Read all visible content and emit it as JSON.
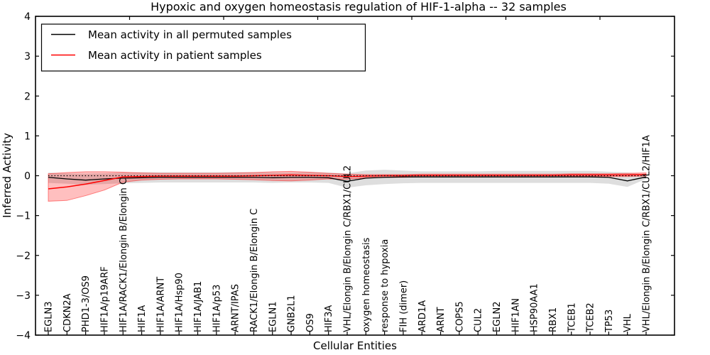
{
  "title": "Hypoxic and oxygen homeostasis regulation of HIF-1-alpha -- 32 samples",
  "colors": {
    "permuted_line": "#000000",
    "patient_line": "#ff0000",
    "permuted_band": "rgba(0,0,0,0.13)",
    "patient_band": "rgba(255,0,0,0.25)",
    "patient_band_edge": "rgba(255,0,0,0.45)",
    "axis": "#000000",
    "background": "#ffffff"
  },
  "chart_data": {
    "type": "line",
    "title": "Hypoxic and oxygen homeostasis regulation of HIF-1-alpha -- 32 samples",
    "xlabel": "Cellular Entities",
    "ylabel": "Inferred Activity",
    "ylim": [
      -4,
      4
    ],
    "ytick_labels": [
      "−4",
      "−3",
      "−2",
      "−1",
      "0",
      "1",
      "2",
      "3",
      "4"
    ],
    "ytick_values": [
      -4,
      -3,
      -2,
      -1,
      0,
      1,
      2,
      3,
      4
    ],
    "grid": false,
    "legend_position": "upper left",
    "reference_line": {
      "y": 0,
      "style": "dotted",
      "color": "#000000"
    },
    "categories": [
      "EGLN3",
      "CDKN2A",
      "PHD1-3/OS9",
      "HIF1A/p19ARF",
      "HIF1A/RACK1/Elongin B/Elongin C",
      "HIF1A",
      "HIF1A/ARNT",
      "HIF1A/Hsp90",
      "HIF1A/JAB1",
      "HIF1A/p53",
      "ARNT/IPAS",
      "RACK1/Elongin B/Elongin C",
      "EGLN1",
      "GNB2L1",
      "OS9",
      "HIF3A",
      "VHL/Elongin B/Elongin C/RBX1/CUL2",
      "oxygen homeostasis",
      "response to hypoxia",
      "FIH (dimer)",
      "ARD1A",
      "ARNT",
      "COPS5",
      "CUL2",
      "EGLN2",
      "HIF1AN",
      "HSP90AA1",
      "RBX1",
      "TCEB1",
      "TCEB2",
      "TP53",
      "VHL",
      "VHL/Elongin B/Elongin C/RBX1/CUL2/HIF1A"
    ],
    "series": [
      {
        "name": "Mean activity in all permuted samples",
        "color": "#000000",
        "values": [
          -0.04,
          -0.08,
          -0.11,
          -0.08,
          -0.06,
          -0.05,
          -0.04,
          -0.04,
          -0.04,
          -0.04,
          -0.04,
          -0.04,
          -0.05,
          -0.04,
          -0.04,
          -0.05,
          -0.14,
          -0.06,
          -0.04,
          -0.03,
          -0.03,
          -0.03,
          -0.03,
          -0.03,
          -0.03,
          -0.03,
          -0.03,
          -0.03,
          -0.03,
          -0.03,
          -0.04,
          -0.13,
          -0.03
        ],
        "band_upper": [
          0.08,
          0.06,
          0.05,
          0.06,
          0.08,
          0.09,
          0.09,
          0.09,
          0.09,
          0.09,
          0.09,
          0.09,
          0.08,
          0.08,
          0.09,
          0.08,
          0.06,
          0.13,
          0.15,
          0.13,
          0.11,
          0.11,
          0.11,
          0.11,
          0.12,
          0.12,
          0.12,
          0.12,
          0.12,
          0.12,
          0.1,
          0.08,
          0.03
        ],
        "band_lower": [
          -0.18,
          -0.2,
          -0.23,
          -0.21,
          -0.19,
          -0.18,
          -0.17,
          -0.17,
          -0.17,
          -0.17,
          -0.17,
          -0.17,
          -0.18,
          -0.17,
          -0.17,
          -0.18,
          -0.3,
          -0.24,
          -0.21,
          -0.19,
          -0.18,
          -0.18,
          -0.18,
          -0.18,
          -0.18,
          -0.18,
          -0.18,
          -0.18,
          -0.18,
          -0.18,
          -0.2,
          -0.28,
          -0.08
        ]
      },
      {
        "name": "Mean activity in patient samples",
        "color": "#ff0000",
        "values": [
          -0.33,
          -0.28,
          -0.21,
          -0.12,
          -0.03,
          -0.02,
          -0.01,
          -0.01,
          -0.01,
          -0.01,
          -0.01,
          0.0,
          0.01,
          0.02,
          0.01,
          0.0,
          -0.02,
          -0.01,
          0.0,
          0.0,
          0.01,
          0.01,
          0.01,
          0.01,
          0.01,
          0.01,
          0.01,
          0.01,
          0.02,
          0.02,
          0.02,
          0.02,
          0.03
        ],
        "band_upper": [
          0.05,
          0.08,
          0.1,
          0.1,
          0.09,
          0.07,
          0.06,
          0.06,
          0.06,
          0.06,
          0.07,
          0.08,
          0.1,
          0.11,
          0.09,
          0.06,
          0.04,
          0.03,
          0.03,
          0.03,
          0.04,
          0.04,
          0.04,
          0.04,
          0.04,
          0.04,
          0.04,
          0.04,
          0.05,
          0.05,
          0.05,
          0.06,
          0.07
        ],
        "band_lower": [
          -0.64,
          -0.62,
          -0.5,
          -0.36,
          -0.16,
          -0.11,
          -0.09,
          -0.08,
          -0.08,
          -0.08,
          -0.09,
          -0.1,
          -0.12,
          -0.13,
          -0.11,
          -0.08,
          -0.09,
          -0.05,
          -0.04,
          -0.04,
          -0.03,
          -0.03,
          -0.03,
          -0.03,
          -0.03,
          -0.03,
          -0.03,
          -0.03,
          -0.02,
          -0.02,
          -0.02,
          -0.02,
          -0.01
        ]
      }
    ]
  }
}
